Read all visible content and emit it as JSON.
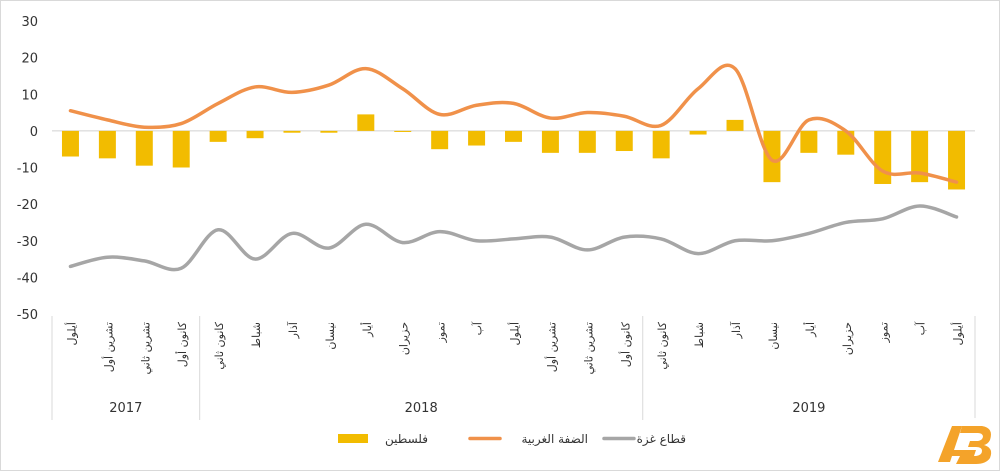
{
  "chart_data": {
    "type": "bar+line",
    "title": "",
    "xlabel": "",
    "ylabel": "",
    "ylim": [
      -50,
      30
    ],
    "yticks": [
      -50,
      -40,
      -30,
      -20,
      -10,
      0,
      10,
      20,
      30
    ],
    "grid": false,
    "legend_position": "bottom",
    "categories": [
      "أيلول",
      "تشرين أول",
      "تشرين ثاني",
      "كانون أول",
      "كانون ثاني",
      "شباط",
      "آذار",
      "نيسان",
      "أيار",
      "حزيران",
      "تموز",
      "آب",
      "أيلول",
      "تشرين أول",
      "تشرين ثاني",
      "كانون أول",
      "كانون ثاني",
      "شباط",
      "آذار",
      "نيسان",
      "أيار",
      "حزيران",
      "تموز",
      "آب",
      "أيلول"
    ],
    "year_groups": [
      {
        "label": "2017",
        "start": 0,
        "end": 3
      },
      {
        "label": "2018",
        "start": 4,
        "end": 15
      },
      {
        "label": "2019",
        "start": 16,
        "end": 24
      }
    ],
    "series": [
      {
        "name": "فلسطين",
        "type": "bar",
        "color": "#F2BC00",
        "values": [
          -7,
          -7.5,
          -9.5,
          -10,
          -3,
          -2,
          -0.5,
          -0.5,
          4.5,
          -0.3,
          -5,
          -4,
          -3,
          -6,
          -6,
          -5.5,
          -7.5,
          -1,
          3,
          -14,
          -6,
          -6.5,
          -14.5,
          -14,
          -16
        ]
      },
      {
        "name": "الضفة الغربية",
        "type": "line",
        "color": "#F0914A",
        "values": [
          5.5,
          3,
          1,
          2,
          7.5,
          12,
          10.5,
          12.5,
          17,
          11.5,
          4.5,
          7,
          7.5,
          3.5,
          5,
          4,
          1.5,
          11.5,
          17,
          -8,
          3,
          0,
          -11,
          -11.5,
          -14
        ]
      },
      {
        "name": "قطاع غزة",
        "type": "line",
        "color": "#A6A6A6",
        "values": [
          -37,
          -34.5,
          -35.5,
          -37.5,
          -27,
          -35,
          -28,
          -32,
          -25.5,
          -30.5,
          -27.5,
          -30,
          -29.5,
          -29,
          -32.5,
          -29,
          -29.5,
          -33.5,
          -30,
          -30,
          -28,
          -25,
          -24,
          -20.5,
          -23.5
        ]
      }
    ]
  },
  "legend": {
    "items": [
      {
        "label": "فلسطين",
        "kind": "bar",
        "color": "#F2BC00"
      },
      {
        "label": "الضفة الغربية",
        "kind": "line",
        "color": "#F0914A"
      },
      {
        "label": "قطاع غزة",
        "kind": "line",
        "color": "#A6A6A6"
      }
    ]
  },
  "watermark": {
    "text": "AB",
    "color": "#F4A32A"
  }
}
